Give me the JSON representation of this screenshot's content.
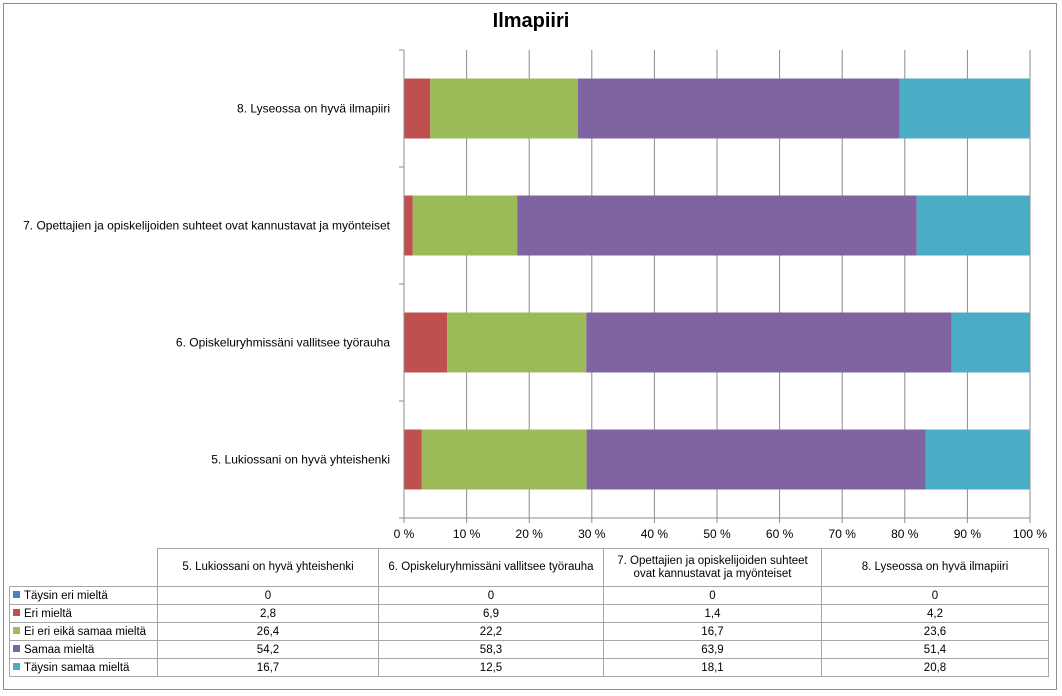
{
  "chart_data": {
    "type": "bar",
    "orientation": "horizontal",
    "stacked": "percent",
    "title": "Ilmapiiri",
    "categories": [
      "5. Lukiossani on hyvä yhteishenki",
      "6. Opiskeluryhmissäni vallitsee työrauha",
      "7. Opettajien ja opiskelijoiden suhteet ovat kannustavat ja myönteiset",
      "8. Lyseossa on hyvä ilmapiiri"
    ],
    "series": [
      {
        "name": "Täysin eri mieltä",
        "color": "#4f81bd",
        "values": [
          0,
          0,
          0,
          0
        ],
        "display": [
          "0",
          "0",
          "0",
          "0"
        ]
      },
      {
        "name": "Eri mieltä",
        "color": "#c0504d",
        "values": [
          2.8,
          6.9,
          1.4,
          4.2
        ],
        "display": [
          "2,8",
          "6,9",
          "1,4",
          "4,2"
        ]
      },
      {
        "name": "Ei eri eikä samaa mieltä",
        "color": "#9bbb59",
        "values": [
          26.4,
          22.2,
          16.7,
          23.6
        ],
        "display": [
          "26,4",
          "22,2",
          "16,7",
          "23,6"
        ]
      },
      {
        "name": "Samaa mieltä",
        "color": "#8064a2",
        "values": [
          54.2,
          58.3,
          63.9,
          51.4
        ],
        "display": [
          "54,2",
          "58,3",
          "63,9",
          "51,4"
        ]
      },
      {
        "name": "Täysin samaa mieltä",
        "color": "#4bacc6",
        "values": [
          16.7,
          12.5,
          18.1,
          20.8
        ],
        "display": [
          "16,7",
          "12,5",
          "18,1",
          "20,8"
        ]
      }
    ],
    "xlim": [
      0,
      100
    ],
    "xticks": [
      "0 %",
      "10 %",
      "20 %",
      "30 %",
      "40 %",
      "50 %",
      "60 %",
      "70 %",
      "80 %",
      "90 %",
      "100 %"
    ],
    "grid": true,
    "legend": "data table below chart"
  },
  "table": {
    "headers": [
      "5. Lukiossani on hyvä yhteishenki",
      "6. Opiskeluryhmissäni vallitsee työrauha",
      "7. Opettajien ja opiskelijoiden suhteet ovat kannustavat ja myönteiset",
      "8. Lyseossa on hyvä ilmapiiri"
    ]
  }
}
